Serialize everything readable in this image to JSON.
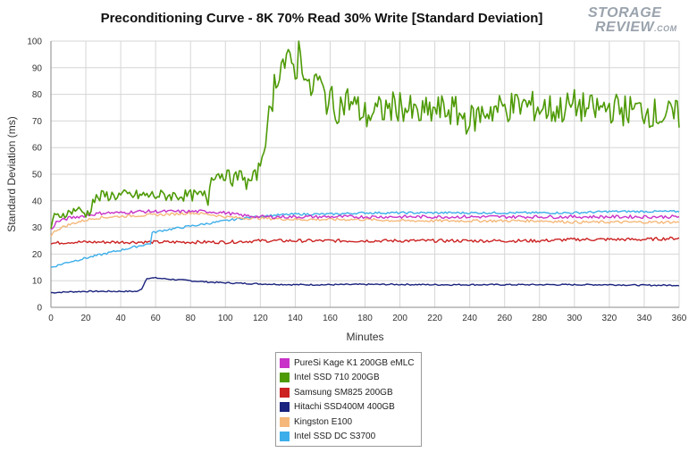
{
  "chart_data": {
    "type": "line",
    "title": "Preconditioning Curve - 8K 70% Read 30% Write [Standard Deviation]",
    "xlabel": "Minutes",
    "ylabel": "Standard Deviation (ms)",
    "xlim": [
      0,
      360
    ],
    "ylim": [
      0,
      100
    ],
    "xticks": [
      0,
      20,
      40,
      60,
      80,
      100,
      120,
      140,
      160,
      180,
      200,
      220,
      240,
      260,
      280,
      300,
      320,
      340,
      360
    ],
    "yticks": [
      0,
      10,
      20,
      30,
      40,
      50,
      60,
      70,
      80,
      90,
      100
    ],
    "grid": true,
    "legend_position": "bottom-center",
    "series": [
      {
        "name": "PureSi Kage K1 200GB eMLC",
        "color": "#c832c8",
        "points": [
          [
            0,
            29
          ],
          [
            3,
            32
          ],
          [
            10,
            33.5
          ],
          [
            20,
            34.5
          ],
          [
            30,
            35.5
          ],
          [
            40,
            35.5
          ],
          [
            50,
            36
          ],
          [
            60,
            36
          ],
          [
            70,
            36
          ],
          [
            80,
            36
          ],
          [
            90,
            36
          ],
          [
            100,
            35.5
          ],
          [
            110,
            34.5
          ],
          [
            120,
            34
          ],
          [
            140,
            34
          ],
          [
            160,
            34
          ],
          [
            180,
            34
          ],
          [
            200,
            34
          ],
          [
            220,
            34
          ],
          [
            240,
            34
          ],
          [
            260,
            34
          ],
          [
            280,
            34
          ],
          [
            300,
            34
          ],
          [
            320,
            34
          ],
          [
            340,
            34
          ],
          [
            360,
            34
          ]
        ]
      },
      {
        "name": "Intel SSD 710 200GB",
        "color": "#4e9a06",
        "points": [
          [
            0,
            30
          ],
          [
            2,
            34
          ],
          [
            10,
            35.5
          ],
          [
            15,
            37
          ],
          [
            20,
            35
          ],
          [
            22,
            36
          ],
          [
            24,
            40
          ],
          [
            30,
            42
          ],
          [
            40,
            42
          ],
          [
            50,
            42
          ],
          [
            60,
            42
          ],
          [
            70,
            42
          ],
          [
            80,
            42
          ],
          [
            88,
            42
          ],
          [
            90,
            40
          ],
          [
            92,
            50
          ],
          [
            100,
            50
          ],
          [
            104,
            48
          ],
          [
            110,
            50
          ],
          [
            112,
            46
          ],
          [
            118,
            50
          ],
          [
            120,
            54
          ],
          [
            124,
            66
          ],
          [
            128,
            84
          ],
          [
            130,
            88
          ],
          [
            132,
            92
          ],
          [
            138,
            91
          ],
          [
            141,
            90
          ],
          [
            142,
            98
          ],
          [
            144,
            93
          ],
          [
            148,
            80
          ],
          [
            152,
            86
          ],
          [
            158,
            78
          ],
          [
            160,
            80
          ],
          [
            162,
            74
          ],
          [
            170,
            78
          ],
          [
            180,
            72
          ],
          [
            190,
            74
          ],
          [
            200,
            76
          ],
          [
            210,
            72
          ],
          [
            220,
            74
          ],
          [
            230,
            74
          ],
          [
            240,
            70
          ],
          [
            250,
            74
          ],
          [
            260,
            75
          ],
          [
            270,
            76
          ],
          [
            280,
            75
          ],
          [
            290,
            74
          ],
          [
            300,
            76
          ],
          [
            310,
            74
          ],
          [
            320,
            75
          ],
          [
            330,
            74
          ],
          [
            340,
            74
          ],
          [
            350,
            72
          ],
          [
            360,
            72
          ]
        ]
      },
      {
        "name": "Samsung SM825 200GB",
        "color": "#cc2222",
        "points": [
          [
            0,
            24
          ],
          [
            10,
            24.5
          ],
          [
            20,
            24.5
          ],
          [
            40,
            24.5
          ],
          [
            60,
            24.5
          ],
          [
            80,
            24.5
          ],
          [
            100,
            24.5
          ],
          [
            120,
            25
          ],
          [
            140,
            25
          ],
          [
            160,
            25
          ],
          [
            180,
            25
          ],
          [
            200,
            25
          ],
          [
            220,
            25
          ],
          [
            240,
            25
          ],
          [
            260,
            25
          ],
          [
            280,
            25
          ],
          [
            300,
            25.5
          ],
          [
            320,
            25.5
          ],
          [
            340,
            25.5
          ],
          [
            360,
            26
          ]
        ]
      },
      {
        "name": "Hitachi SSD400M 400GB",
        "color": "#1a237e",
        "points": [
          [
            0,
            5.5
          ],
          [
            10,
            5.8
          ],
          [
            20,
            6
          ],
          [
            30,
            6
          ],
          [
            40,
            6
          ],
          [
            50,
            6
          ],
          [
            52,
            7
          ],
          [
            55,
            11
          ],
          [
            60,
            11
          ],
          [
            70,
            10.5
          ],
          [
            80,
            10
          ],
          [
            90,
            9.5
          ],
          [
            100,
            9.2
          ],
          [
            110,
            9
          ],
          [
            120,
            8.8
          ],
          [
            140,
            8.5
          ],
          [
            160,
            8.5
          ],
          [
            180,
            8.6
          ],
          [
            200,
            8.6
          ],
          [
            220,
            8.5
          ],
          [
            240,
            8.5
          ],
          [
            260,
            8.5
          ],
          [
            280,
            8.5
          ],
          [
            300,
            8.5
          ],
          [
            320,
            8.5
          ],
          [
            340,
            8.3
          ],
          [
            360,
            8.3
          ]
        ]
      },
      {
        "name": "Kingston E100",
        "color": "#f5b87a",
        "points": [
          [
            0,
            27
          ],
          [
            3,
            29
          ],
          [
            8,
            30.5
          ],
          [
            15,
            32
          ],
          [
            25,
            33.5
          ],
          [
            35,
            34
          ],
          [
            50,
            34.5
          ],
          [
            70,
            35
          ],
          [
            80,
            35.5
          ],
          [
            90,
            35
          ],
          [
            100,
            34
          ],
          [
            110,
            33.5
          ],
          [
            120,
            33.5
          ],
          [
            140,
            33
          ],
          [
            160,
            33
          ],
          [
            180,
            33
          ],
          [
            200,
            32.5
          ],
          [
            220,
            32.5
          ],
          [
            240,
            32.5
          ],
          [
            260,
            32.5
          ],
          [
            280,
            32.5
          ],
          [
            300,
            32
          ],
          [
            320,
            32
          ],
          [
            340,
            32
          ],
          [
            360,
            32
          ]
        ]
      },
      {
        "name": "Intel SSD DC S3700",
        "color": "#3daee9",
        "points": [
          [
            0,
            15
          ],
          [
            5,
            16
          ],
          [
            10,
            17
          ],
          [
            20,
            18.5
          ],
          [
            30,
            20
          ],
          [
            40,
            21.5
          ],
          [
            50,
            23
          ],
          [
            57,
            24
          ],
          [
            58,
            28
          ],
          [
            65,
            29
          ],
          [
            75,
            30
          ],
          [
            85,
            31
          ],
          [
            95,
            32
          ],
          [
            110,
            33.5
          ],
          [
            125,
            34.5
          ],
          [
            140,
            35
          ],
          [
            160,
            35
          ],
          [
            180,
            35.5
          ],
          [
            200,
            35.5
          ],
          [
            220,
            35.5
          ],
          [
            240,
            35.5
          ],
          [
            260,
            35.5
          ],
          [
            280,
            35.5
          ],
          [
            300,
            35.5
          ],
          [
            320,
            36
          ],
          [
            340,
            36
          ],
          [
            360,
            36
          ]
        ]
      }
    ]
  },
  "logo": {
    "line1": "STORAGE",
    "line2": "REVIEW",
    "line2_suffix": ".COM"
  }
}
